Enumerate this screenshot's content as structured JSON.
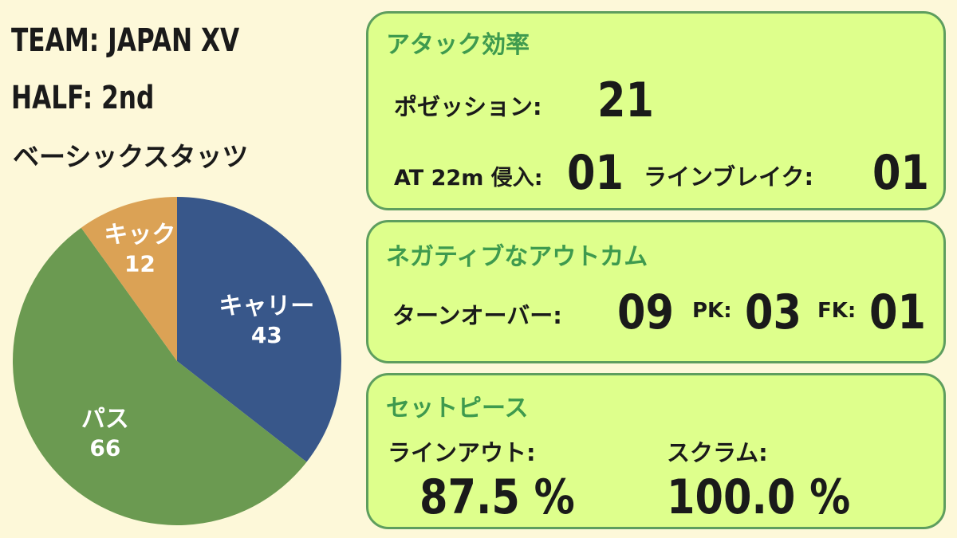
{
  "header": {
    "team": "TEAM: JAPAN XV",
    "half": "HALF: 2nd",
    "basic_stats_title": "ベーシックスタッツ"
  },
  "chart_data": {
    "type": "pie",
    "title": "ベーシックスタッツ",
    "slices": [
      {
        "label": "キャリー",
        "value": 43,
        "color": "#38578a"
      },
      {
        "label": "パス",
        "value": 66,
        "color": "#6b9a51"
      },
      {
        "label": "キック",
        "value": 12,
        "color": "#dba255"
      }
    ]
  },
  "attack": {
    "title": "アタック効率",
    "possession_label": "ポゼッション:",
    "possession_value": "21",
    "at22_label": "AT 22m 侵入:",
    "at22_value": "01",
    "linebreak_label": "ラインブレイク:",
    "linebreak_value": "01"
  },
  "negative": {
    "title": "ネガティブなアウトカム",
    "turnover_label": "ターンオーバー:",
    "turnover_value": "09",
    "pk_label": "PK:",
    "pk_value": "03",
    "fk_label": "FK:",
    "fk_value": "01"
  },
  "setpiece": {
    "title": "セットピース",
    "lineout_label": "ラインアウト:",
    "lineout_value": "87.5 %",
    "scrum_label": "スクラム:",
    "scrum_value": "100.0 %"
  },
  "colors": {
    "background": "#fdf8d9",
    "panel": "#deff8c",
    "panel_border": "#5e9e5e",
    "panel_title": "#3e9a4e"
  }
}
